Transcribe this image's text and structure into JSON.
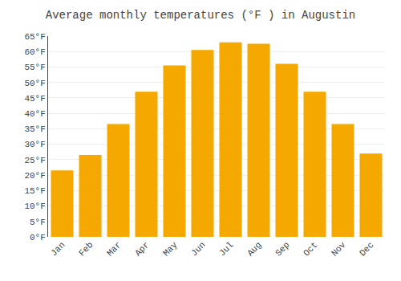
{
  "chart_data": {
    "type": "bar",
    "title": "Average monthly temperatures (°F ) in Augustin",
    "categories": [
      "Jan",
      "Feb",
      "Mar",
      "Apr",
      "May",
      "Jun",
      "Jul",
      "Aug",
      "Sep",
      "Oct",
      "Nov",
      "Dec"
    ],
    "values": [
      21.5,
      26.5,
      36.5,
      47,
      55.5,
      60.5,
      63,
      62.5,
      56,
      47,
      36.5,
      27
    ],
    "color": "#F5A800",
    "ylim": [
      0,
      65
    ],
    "yticks": [
      {
        "value": 0,
        "label": "0°F"
      },
      {
        "value": 5,
        "label": "5°F"
      },
      {
        "value": 10,
        "label": "10°F"
      },
      {
        "value": 15,
        "label": "15°F"
      },
      {
        "value": 20,
        "label": "20°F"
      },
      {
        "value": 25,
        "label": "25°F"
      },
      {
        "value": 30,
        "label": "30°F"
      },
      {
        "value": 35,
        "label": "35°F"
      },
      {
        "value": 40,
        "label": "40°F"
      },
      {
        "value": 45,
        "label": "45°F"
      },
      {
        "value": 50,
        "label": "50°F"
      },
      {
        "value": 55,
        "label": "55°F"
      },
      {
        "value": 60,
        "label": "60°F"
      },
      {
        "value": 65,
        "label": "65°F"
      }
    ],
    "grid": true
  }
}
